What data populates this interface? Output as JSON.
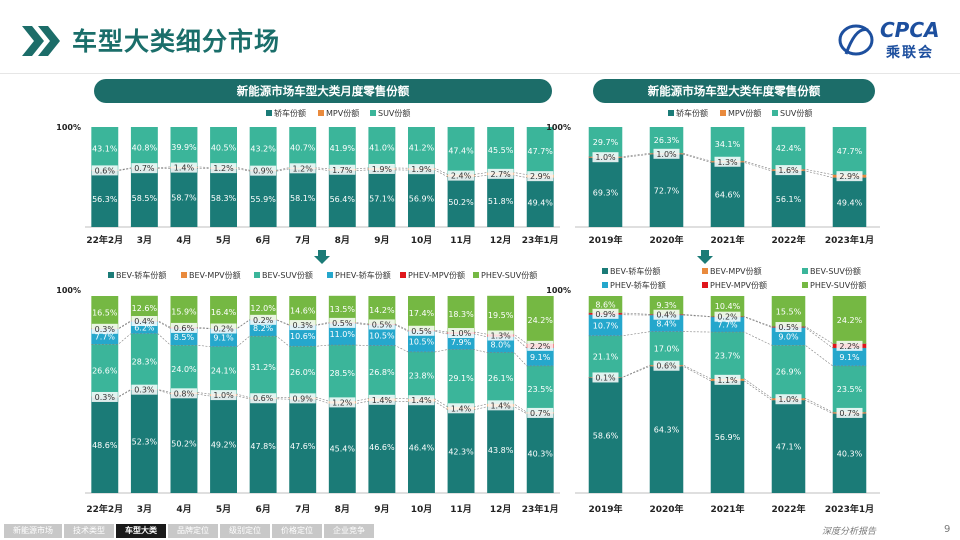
{
  "page": {
    "title": "车型大类细分市场",
    "logo_en": "CPCA",
    "logo_cn": "乘联会",
    "page_number": "9",
    "footer_text": "深度分析报告",
    "nav": [
      "新能源市场",
      "技术类型",
      "车型大类",
      "品牌定位",
      "级别定位",
      "价格定位",
      "企业竞争"
    ],
    "active_nav": 2,
    "section_titles": [
      "新能源市场车型大类月度零售份额",
      "新能源市场车型大类年度零售份额"
    ]
  },
  "colors": {
    "accent": "#1c6d69",
    "car": "#1b7b77",
    "mpv": "#e98a3d",
    "suv": "#3bb59a",
    "bev_car": "#1b7b77",
    "bev_mpv": "#e98a3d",
    "bev_suv": "#3bb59a",
    "phev_car": "#25a7cc",
    "phev_mpv": "#e0161b",
    "phev_suv": "#75b843",
    "arrow": "#1b7b77"
  },
  "chart_data": [
    {
      "id": "monthly_top",
      "type": "bar",
      "stacked": true,
      "title": "新能源市场车型大类月度零售份额",
      "ylabel": "",
      "y_max_label": "100%",
      "categories": [
        "22年2月",
        "3月",
        "4月",
        "5月",
        "6月",
        "7月",
        "8月",
        "9月",
        "10月",
        "11月",
        "12月",
        "23年1月"
      ],
      "series": [
        {
          "name": "轿车份额",
          "color_key": "car",
          "values": [
            56.3,
            58.5,
            58.7,
            58.3,
            55.9,
            58.1,
            56.4,
            57.1,
            56.9,
            50.2,
            51.8,
            49.4
          ]
        },
        {
          "name": "MPV份额",
          "color_key": "mpv",
          "values": [
            0.6,
            0.7,
            1.4,
            1.2,
            0.9,
            1.2,
            1.7,
            1.9,
            1.9,
            2.4,
            2.7,
            2.9
          ]
        },
        {
          "name": "SUV份额",
          "color_key": "suv",
          "values": [
            43.1,
            40.8,
            39.9,
            40.5,
            43.2,
            40.7,
            41.9,
            41.0,
            41.2,
            47.4,
            45.5,
            47.7
          ]
        }
      ]
    },
    {
      "id": "yearly_top",
      "type": "bar",
      "stacked": true,
      "title": "新能源市场车型大类年度零售份额",
      "y_max_label": "100%",
      "categories": [
        "2019年",
        "2020年",
        "2021年",
        "2022年",
        "2023年1月"
      ],
      "series": [
        {
          "name": "轿车份额",
          "color_key": "car",
          "values": [
            69.3,
            72.7,
            64.6,
            56.1,
            49.4
          ]
        },
        {
          "name": "MPV份额",
          "color_key": "mpv",
          "values": [
            1.0,
            1.0,
            1.3,
            1.6,
            2.9
          ]
        },
        {
          "name": "SUV份额",
          "color_key": "suv",
          "values": [
            29.7,
            26.3,
            34.1,
            42.4,
            47.7
          ]
        }
      ]
    },
    {
      "id": "monthly_bottom",
      "type": "bar",
      "stacked": true,
      "y_max_label": "100%",
      "categories": [
        "22年2月",
        "3月",
        "4月",
        "5月",
        "6月",
        "7月",
        "8月",
        "9月",
        "10月",
        "11月",
        "12月",
        "23年1月"
      ],
      "series": [
        {
          "name": "BEV-轿车份额",
          "color_key": "bev_car",
          "values": [
            48.6,
            52.3,
            50.2,
            49.2,
            47.8,
            47.6,
            45.4,
            46.6,
            46.4,
            42.3,
            43.8,
            40.3
          ]
        },
        {
          "name": "BEV-MPV份额",
          "color_key": "bev_mpv",
          "values": [
            0.3,
            0.3,
            0.8,
            1.0,
            0.6,
            0.9,
            1.2,
            1.4,
            1.4,
            1.4,
            1.4,
            0.7
          ]
        },
        {
          "name": "BEV-SUV份额",
          "color_key": "bev_suv",
          "values": [
            26.6,
            28.3,
            24.0,
            24.1,
            31.2,
            26.0,
            28.5,
            26.8,
            23.8,
            29.1,
            26.1,
            23.5
          ]
        },
        {
          "name": "PHEV-轿车份额",
          "color_key": "phev_car",
          "values": [
            7.7,
            6.2,
            8.5,
            9.1,
            8.2,
            10.6,
            11.0,
            10.5,
            10.5,
            7.9,
            8.0,
            9.1
          ]
        },
        {
          "name": "PHEV-MPV份额",
          "color_key": "phev_mpv",
          "values": [
            0.3,
            0.4,
            0.6,
            0.2,
            0.2,
            0.3,
            0.5,
            0.5,
            0.5,
            1.0,
            1.3,
            2.2
          ]
        },
        {
          "name": "PHEV-SUV份额",
          "color_key": "phev_suv",
          "values": [
            16.5,
            12.6,
            15.9,
            16.4,
            12.0,
            14.6,
            13.5,
            14.2,
            17.4,
            18.3,
            19.5,
            24.2
          ]
        }
      ]
    },
    {
      "id": "yearly_bottom",
      "type": "bar",
      "stacked": true,
      "y_max_label": "100%",
      "categories": [
        "2019年",
        "2020年",
        "2021年",
        "2022年",
        "2023年1月"
      ],
      "series": [
        {
          "name": "BEV-轿车份额",
          "color_key": "bev_car",
          "values": [
            58.6,
            64.3,
            56.9,
            47.1,
            40.3
          ]
        },
        {
          "name": "BEV-MPV份额",
          "color_key": "bev_mpv",
          "values": [
            0.1,
            0.6,
            1.1,
            1.0,
            0.7
          ]
        },
        {
          "name": "BEV-SUV份额",
          "color_key": "bev_suv",
          "values": [
            21.1,
            17.0,
            23.7,
            26.9,
            23.5
          ]
        },
        {
          "name": "PHEV-轿车份额",
          "color_key": "phev_car",
          "values": [
            10.7,
            8.4,
            7.7,
            9.0,
            9.1
          ]
        },
        {
          "name": "PHEV-MPV份额",
          "color_key": "phev_mpv",
          "values": [
            0.9,
            0.4,
            0.2,
            0.5,
            2.2
          ]
        },
        {
          "name": "PHEV-SUV份额",
          "color_key": "phev_suv",
          "values": [
            8.6,
            9.3,
            10.4,
            15.5,
            24.2
          ]
        }
      ]
    }
  ]
}
